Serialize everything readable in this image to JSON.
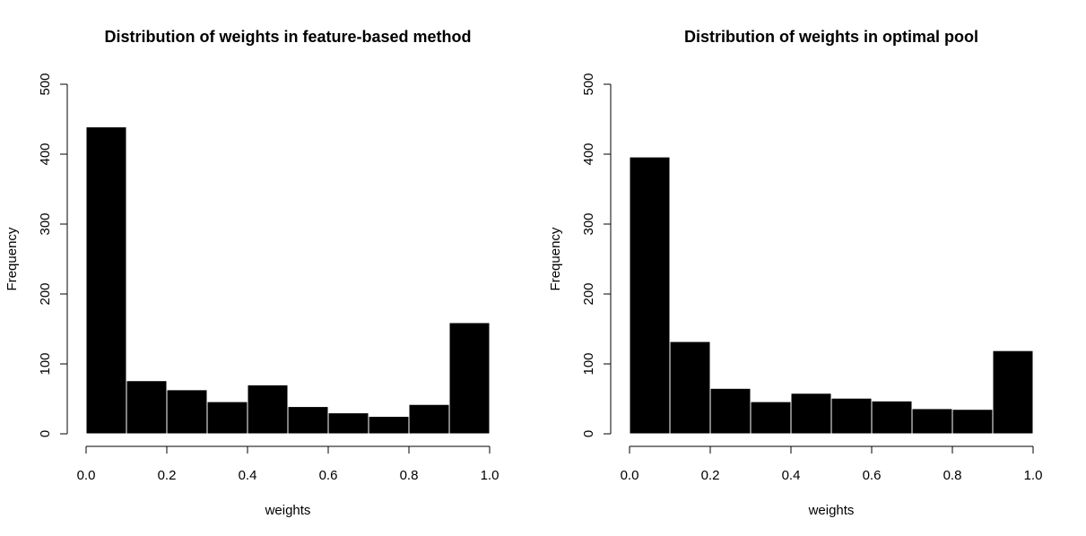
{
  "chart_data": [
    {
      "type": "bar",
      "title": "Distribution of weights in feature-based method",
      "xlabel": "weights",
      "ylabel": "Frequency",
      "xlim": [
        0,
        1
      ],
      "ylim": [
        0,
        500
      ],
      "x_ticks": [
        "0.0",
        "0.2",
        "0.4",
        "0.6",
        "0.8",
        "1.0"
      ],
      "y_ticks": [
        "0",
        "100",
        "200",
        "300",
        "400",
        "500"
      ],
      "bins": [
        [
          0.0,
          0.1
        ],
        [
          0.1,
          0.2
        ],
        [
          0.2,
          0.3
        ],
        [
          0.3,
          0.4
        ],
        [
          0.4,
          0.5
        ],
        [
          0.5,
          0.6
        ],
        [
          0.6,
          0.7
        ],
        [
          0.7,
          0.8
        ],
        [
          0.8,
          0.9
        ],
        [
          0.9,
          1.0
        ]
      ],
      "values": [
        439,
        76,
        63,
        46,
        70,
        39,
        30,
        25,
        42,
        159
      ],
      "bar_color": "#000000",
      "bar_border": "#ffffff",
      "grid": false
    },
    {
      "type": "bar",
      "title": "Distribution of weights in optimal pool",
      "xlabel": "weights",
      "ylabel": "Frequency",
      "xlim": [
        0,
        1
      ],
      "ylim": [
        0,
        500
      ],
      "x_ticks": [
        "0.0",
        "0.2",
        "0.4",
        "0.6",
        "0.8",
        "1.0"
      ],
      "y_ticks": [
        "0",
        "100",
        "200",
        "300",
        "400",
        "500"
      ],
      "bins": [
        [
          0.0,
          0.1
        ],
        [
          0.1,
          0.2
        ],
        [
          0.2,
          0.3
        ],
        [
          0.3,
          0.4
        ],
        [
          0.4,
          0.5
        ],
        [
          0.5,
          0.6
        ],
        [
          0.6,
          0.7
        ],
        [
          0.7,
          0.8
        ],
        [
          0.8,
          0.9
        ],
        [
          0.9,
          1.0
        ]
      ],
      "values": [
        396,
        132,
        65,
        46,
        58,
        51,
        47,
        36,
        35,
        119
      ],
      "bar_color": "#000000",
      "bar_border": "#ffffff",
      "grid": false
    }
  ]
}
